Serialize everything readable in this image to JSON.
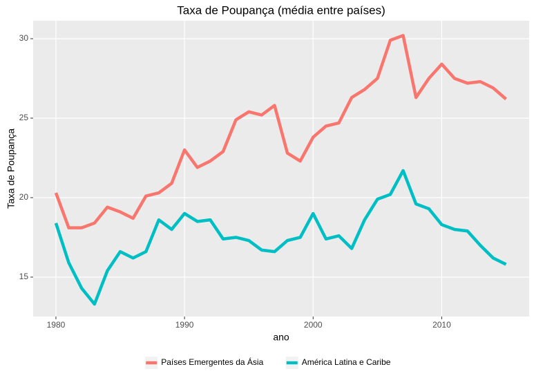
{
  "chart_data": {
    "type": "line",
    "title": "Taxa de Poupança (média entre países)",
    "x_label": "ano",
    "y_label": "Taxa de Poupança",
    "x": [
      1980,
      1981,
      1982,
      1983,
      1984,
      1985,
      1986,
      1987,
      1988,
      1989,
      1990,
      1991,
      1992,
      1993,
      1994,
      1995,
      1996,
      1997,
      1998,
      1999,
      2000,
      2001,
      2002,
      2003,
      2004,
      2005,
      2006,
      2007,
      2008,
      2009,
      2010,
      2011,
      2012,
      2013,
      2014,
      2015
    ],
    "series": [
      {
        "name": "Países Emergentes da Ásia",
        "color": "#f8766d",
        "values": [
          20.3,
          18.1,
          18.1,
          18.4,
          19.4,
          19.1,
          18.7,
          20.1,
          20.3,
          20.9,
          23.0,
          21.9,
          22.3,
          22.9,
          24.9,
          25.4,
          25.2,
          25.8,
          22.8,
          22.3,
          23.8,
          24.5,
          24.7,
          26.3,
          26.8,
          27.5,
          29.9,
          30.2,
          26.3,
          27.5,
          28.4,
          27.5,
          27.2,
          27.3,
          26.9,
          26.2
        ]
      },
      {
        "name": "América Latina e Caribe",
        "color": "#00bfc4",
        "values": [
          18.4,
          15.9,
          14.3,
          13.3,
          15.4,
          16.6,
          16.2,
          16.6,
          18.6,
          18.0,
          19.0,
          18.5,
          18.6,
          17.4,
          17.5,
          17.3,
          16.7,
          16.6,
          17.3,
          17.5,
          19.0,
          17.4,
          17.6,
          16.8,
          18.6,
          19.9,
          20.2,
          21.7,
          19.6,
          19.3,
          18.3,
          18.0,
          17.9,
          17.0,
          16.2,
          15.8
        ]
      }
    ],
    "xlim": [
      1978.23,
      2016.8
    ],
    "xticks": [
      1980,
      1990,
      2000,
      2010
    ],
    "ylim": [
      12.52,
      31.13
    ],
    "yticks": [
      15,
      20,
      25,
      30
    ],
    "grid": true,
    "legend": "bottom"
  }
}
